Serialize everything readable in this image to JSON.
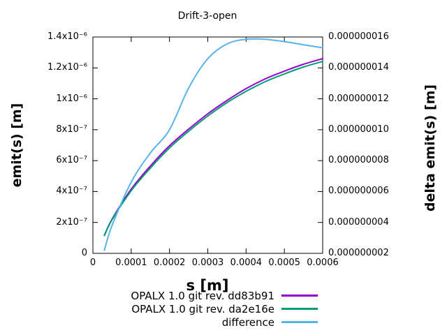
{
  "title": "Drift-3-open",
  "chart_data": {
    "type": "line",
    "title": "Drift-3-open",
    "xlabel": "s [m]",
    "ylabel_left": "emit(s) [m]",
    "ylabel_right": "delta emit(s) [m]",
    "grid": false,
    "legend_position": "below-plot-right",
    "x_range": [
      0,
      0.0006
    ],
    "y_left_range": [
      0,
      1.4e-06
    ],
    "y_right_range": [
      2e-09,
      1.6e-08
    ],
    "x_ticks": {
      "values": [
        0,
        0.0001,
        0.0002,
        0.0003,
        0.0004,
        0.0005,
        0.0006
      ],
      "labels": [
        "0",
        "0.0001",
        "0.0002",
        "0.0003",
        "0.0004",
        "0.0005",
        "0.0006"
      ]
    },
    "y_left_ticks": {
      "values": [
        0,
        2e-07,
        4e-07,
        6e-07,
        8e-07,
        1e-06,
        1.2e-06,
        1.4e-06
      ],
      "labels": [
        "0",
        "2x10⁻⁷",
        "4x10⁻⁷",
        "6x10⁻⁷",
        "8x10⁻⁷",
        "1x10⁻⁶",
        "1.2x10⁻⁶",
        "1.4x10⁻⁶"
      ]
    },
    "y_right_ticks": {
      "values": [
        2e-09,
        4e-09,
        6e-09,
        8e-09,
        1e-08,
        1.2e-08,
        1.4e-08,
        1.6e-08
      ],
      "labels": [
        "0.000000002",
        "0.000000004",
        "0.000000006",
        "0.000000008",
        "0.000000010",
        "0.000000012",
        "0.000000014",
        "0.000000016"
      ]
    },
    "x": [
      3e-05,
      5e-05,
      0.0001,
      0.00015,
      0.0002,
      0.00025,
      0.0003,
      0.00035,
      0.0004,
      0.00045,
      0.0005,
      0.00055,
      0.0006
    ],
    "series": [
      {
        "name": "OPALX 1.0 git rev. dd83b91",
        "color": "#9400d3",
        "axis": "left",
        "values": [
          1.17e-07,
          2.21e-07,
          4.15e-07,
          5.65e-07,
          6.96e-07,
          8.04e-07,
          9.03e-07,
          9.89e-07,
          1.066e-06,
          1.129e-06,
          1.179e-06,
          1.224e-06,
          1.26e-06
        ]
      },
      {
        "name": "OPALX 1.0 git rev. da2e16e",
        "color": "#009e73",
        "axis": "left",
        "values": [
          1.15e-07,
          2.17e-07,
          4.05e-07,
          5.52e-07,
          6.82e-07,
          7.9e-07,
          8.89e-07,
          9.75e-07,
          1.048e-06,
          1.111e-06,
          1.161e-06,
          1.206e-06,
          1.242e-06
        ]
      },
      {
        "name": "difference",
        "color": "#56b4e9",
        "axis": "right",
        "values": [
          2.2e-09,
          3.8e-09,
          6.6e-09,
          8.5e-09,
          1e-08,
          1.27e-08,
          1.46e-08,
          1.555e-08,
          1.585e-08,
          1.585e-08,
          1.57e-08,
          1.55e-08,
          1.53e-08
        ]
      }
    ],
    "border_color": "#000000",
    "background_color": "#ffffff"
  }
}
